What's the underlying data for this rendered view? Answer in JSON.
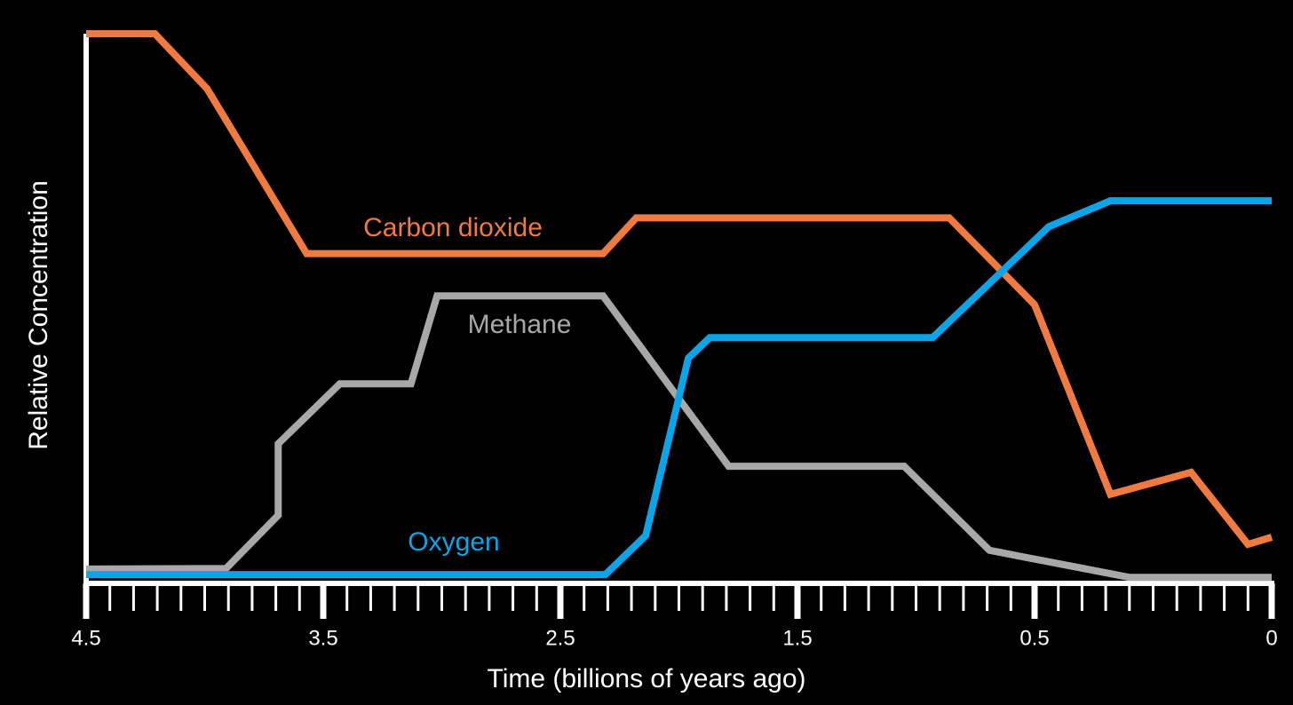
{
  "chart_data": {
    "type": "line",
    "x_label": "Time (billions of years ago)",
    "y_label": "Relative Concentration",
    "xlim": [
      4.5,
      0
    ],
    "xticks": [
      4.5,
      3.5,
      2.5,
      1.5,
      0.5,
      0
    ],
    "xminorticks": [
      4.4,
      4.3,
      4.2,
      4.1,
      4.0,
      3.9,
      3.8,
      3.7,
      3.6,
      3.4,
      3.3,
      3.2,
      3.1,
      3.0,
      2.9,
      2.8,
      2.7,
      2.6,
      2.4,
      2.3,
      2.2,
      2.1,
      2.0,
      1.9,
      1.8,
      1.7,
      1.6,
      1.4,
      1.3,
      1.2,
      1.1,
      1.0,
      0.9,
      0.8,
      0.7,
      0.6,
      0.45,
      0.4,
      0.35,
      0.3,
      0.25,
      0.2,
      0.15,
      0.1,
      0.05
    ],
    "ylim": [
      0,
      100
    ],
    "series": [
      {
        "name": "Carbon dioxide",
        "color": "#f07a40",
        "x": [
          4.5,
          4.21,
          3.99,
          3.57,
          2.32,
          2.18,
          0.86,
          0.5,
          0.34,
          0.17,
          0.05,
          0
        ],
        "values": [
          100,
          100,
          90,
          60,
          60,
          66.5,
          66.5,
          50.7,
          16.2,
          20.2,
          7.1,
          8.4
        ]
      },
      {
        "name": "Methane",
        "color": "#a8a8a8",
        "x": [
          4.5,
          3.91,
          3.69,
          3.69,
          3.43,
          3.13,
          3.02,
          2.32,
          1.79,
          1.05,
          0.69,
          0.3,
          0
        ],
        "values": [
          2.6,
          2.7,
          12.4,
          25.4,
          36.3,
          36.3,
          52.3,
          52.3,
          21.3,
          21.3,
          6.0,
          1.1,
          1.1
        ]
      },
      {
        "name": "Oxygen",
        "color": "#0aa4e8",
        "x": [
          4.5,
          2.31,
          2.14,
          1.96,
          1.87,
          0.93,
          0.47,
          0.34,
          0
        ],
        "values": [
          1.6,
          1.6,
          8.7,
          41.0,
          44.7,
          44.7,
          64.9,
          69.6,
          69.6
        ]
      }
    ]
  }
}
